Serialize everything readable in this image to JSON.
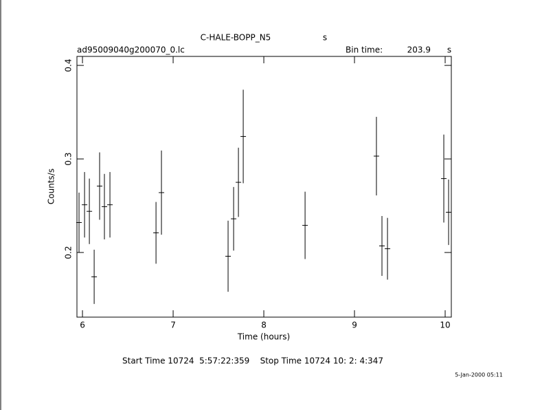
{
  "chart_data": {
    "type": "errorbar",
    "title": "C-HALE-BOPP_N5",
    "title_unit": "s",
    "subtitle": "ad95009040g200070_0.lc",
    "bin_time_label": "Bin time:",
    "bin_time": 203.9,
    "bin_time_unit": "s",
    "xlabel": "Time (hours)",
    "ylabel": "Counts/s",
    "footer": "Start Time 10724  5:57:22:359    Stop Time 10724 10: 2: 4:347",
    "date_stamp": "5-Jan-2000 05:11",
    "color": "#000000",
    "x": [
      5.962,
      6.023,
      6.076,
      6.129,
      6.189,
      6.242,
      6.303,
      6.811,
      6.871,
      7.606,
      7.667,
      7.72,
      7.773,
      8.455,
      9.242,
      9.303,
      9.364,
      9.985,
      10.038
    ],
    "values": [
      0.232,
      0.251,
      0.244,
      0.174,
      0.271,
      0.249,
      0.251,
      0.221,
      0.264,
      0.196,
      0.236,
      0.275,
      0.324,
      0.229,
      0.303,
      0.207,
      0.204,
      0.279,
      0.243
    ],
    "errors": [
      0.032,
      0.035,
      0.035,
      0.029,
      0.036,
      0.035,
      0.035,
      0.033,
      0.045,
      0.038,
      0.034,
      0.037,
      0.05,
      0.036,
      0.042,
      0.032,
      0.033,
      0.047,
      0.035
    ],
    "xlim": [
      5.939,
      10.068
    ],
    "ylim": [
      0.1309,
      0.4096
    ],
    "xticks": [
      6,
      7,
      8,
      9,
      10
    ],
    "yticks": [
      0.2,
      0.3,
      0.4
    ]
  }
}
